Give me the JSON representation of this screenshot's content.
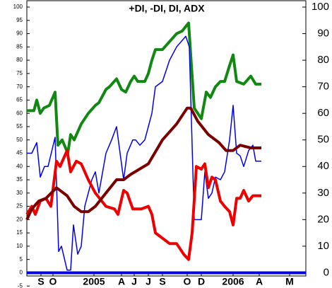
{
  "chart_data": {
    "type": "line",
    "title": "+DI, -DI, DI, ADX",
    "xlim": [
      38,
      433
    ],
    "xticks": [
      {
        "value": 58,
        "label": "S"
      },
      {
        "value": 75,
        "label": "O"
      },
      {
        "value": 133,
        "label": "2005"
      },
      {
        "value": 172,
        "label": "A"
      },
      {
        "value": 190,
        "label": "J"
      },
      {
        "value": 210,
        "label": "J"
      },
      {
        "value": 230,
        "label": "S"
      },
      {
        "value": 265,
        "label": "O"
      },
      {
        "value": 285,
        "label": "D"
      },
      {
        "value": 330,
        "label": "2006"
      },
      {
        "value": 367,
        "label": "A"
      },
      {
        "value": 410,
        "label": "M"
      }
    ],
    "ylim": [
      -5.5,
      102
    ],
    "yticks": [
      -5,
      0,
      5,
      10,
      15,
      20,
      25,
      30,
      35,
      40,
      45,
      50,
      55,
      60,
      65,
      70,
      75,
      80,
      85,
      90,
      95,
      100
    ],
    "y2lim": [
      -5.5,
      102
    ],
    "y2ticks": [
      0,
      10,
      20,
      30,
      40,
      50,
      60,
      70,
      80,
      90,
      100
    ],
    "zero_line": {
      "value": 0,
      "color": "#0000dd"
    },
    "series": [
      {
        "color": "#118811",
        "width": 4,
        "x": [
          38,
          48,
          52,
          57,
          62,
          70,
          78,
          82,
          88,
          96,
          100,
          105,
          115,
          125,
          135,
          140,
          150,
          155,
          165,
          172,
          178,
          185,
          190,
          195,
          205,
          210,
          215,
          220,
          230,
          240,
          250,
          258,
          267,
          275,
          280,
          285,
          292,
          298,
          305,
          312,
          318,
          325,
          330,
          335,
          345,
          355,
          362,
          370
        ],
        "values": [
          61,
          61,
          65,
          60,
          62,
          63,
          68,
          48,
          50,
          45,
          52,
          50,
          56,
          60,
          63,
          64,
          69,
          70,
          73,
          69,
          68,
          72,
          74,
          72,
          72,
          75,
          80,
          84,
          84,
          87,
          90,
          91,
          94,
          62,
          60,
          58,
          68,
          66,
          70,
          72,
          72,
          78,
          82,
          72,
          71,
          74,
          71,
          71
        ]
      },
      {
        "color": "#0000ee",
        "width": 1.5,
        "x": [
          38,
          45,
          52,
          57,
          63,
          68,
          78,
          83,
          87,
          95,
          100,
          104,
          110,
          115,
          120,
          130,
          135,
          140,
          150,
          158,
          165,
          175,
          180,
          188,
          192,
          198,
          205,
          210,
          215,
          220,
          230,
          240,
          250,
          263,
          268,
          275,
          285,
          290,
          295,
          300,
          305,
          312,
          318,
          325,
          330,
          335,
          340,
          345,
          352,
          358,
          362,
          370
        ],
        "values": [
          45,
          45,
          49,
          36,
          40,
          40,
          51,
          8,
          10,
          1,
          1,
          18,
          7,
          10,
          25,
          35,
          38,
          30,
          45,
          50,
          55,
          35,
          45,
          50,
          50,
          48,
          50,
          55,
          60,
          70,
          72,
          80,
          85,
          89,
          85,
          20,
          20,
          38,
          28,
          30,
          36,
          35,
          38,
          50,
          63,
          45,
          44,
          40,
          46,
          48,
          42,
          42
        ]
      },
      {
        "color": "#ee0000",
        "width": 4,
        "x": [
          38,
          45,
          50,
          57,
          65,
          72,
          80,
          85,
          95,
          100,
          108,
          115,
          125,
          135,
          150,
          162,
          167,
          175,
          180,
          188,
          200,
          210,
          215,
          220,
          230,
          240,
          250,
          260,
          267,
          272,
          278,
          285,
          290,
          295,
          300,
          305,
          312,
          318,
          325,
          330,
          335,
          340,
          345,
          352,
          358,
          362,
          370
        ],
        "values": [
          22,
          25,
          22,
          27,
          28,
          25,
          42,
          40,
          46,
          38,
          42,
          41,
          35,
          30,
          25,
          24,
          22,
          31,
          30,
          24,
          24,
          25,
          22,
          15,
          13,
          11,
          11,
          7,
          5,
          15,
          40,
          39,
          41,
          32,
          36,
          35,
          27,
          25,
          23,
          18,
          28,
          28,
          31,
          27,
          29,
          29,
          29
        ]
      },
      {
        "color": "#7a0000",
        "width": 4,
        "x": [
          38,
          45,
          55,
          65,
          80,
          95,
          105,
          115,
          125,
          135,
          150,
          165,
          175,
          185,
          210,
          230,
          250,
          265,
          270,
          280,
          295,
          310,
          320,
          330,
          340,
          355,
          370
        ],
        "values": [
          20,
          24,
          27,
          28,
          32,
          29,
          25,
          23,
          23,
          25,
          30,
          35,
          35,
          37,
          41,
          50,
          56,
          62,
          62,
          57,
          52,
          49,
          46,
          46,
          48,
          47,
          47
        ]
      }
    ]
  }
}
